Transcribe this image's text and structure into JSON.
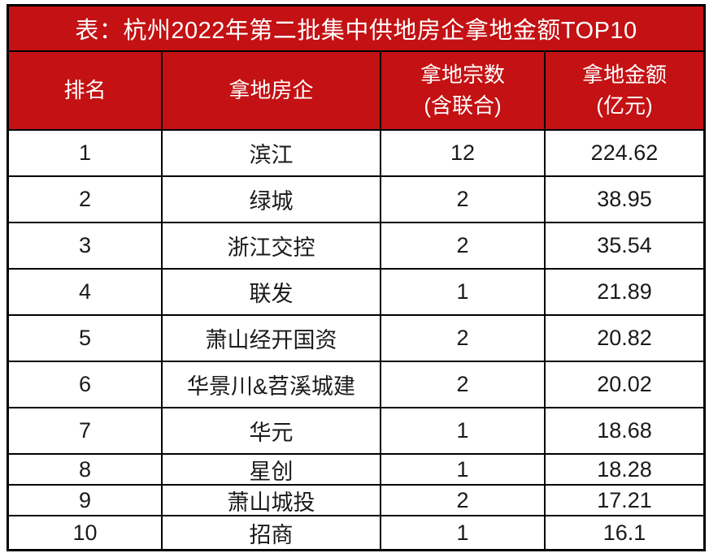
{
  "page": {
    "title": "表：杭州2022年第二批集中供地房企拿地金额TOP10"
  },
  "colors": {
    "accent_red": "#C41113",
    "header_text": "#FFFFFF",
    "border": "#000000",
    "body_text": "#1A1A1A"
  },
  "table": {
    "headers": [
      {
        "line1": "排名",
        "line2": ""
      },
      {
        "line1": "拿地房企",
        "line2": ""
      },
      {
        "line1": "拿地宗数",
        "line2": "(含联合)"
      },
      {
        "line1": "拿地金额",
        "line2": "(亿元)"
      }
    ],
    "rows": [
      {
        "rank": "1",
        "company": "滨江",
        "plots": "12",
        "amount": "224.62"
      },
      {
        "rank": "2",
        "company": "绿城",
        "plots": "2",
        "amount": "38.95"
      },
      {
        "rank": "3",
        "company": "浙江交控",
        "plots": "2",
        "amount": "35.54"
      },
      {
        "rank": "4",
        "company": "联发",
        "plots": "1",
        "amount": "21.89"
      },
      {
        "rank": "5",
        "company": "萧山经开国资",
        "plots": "2",
        "amount": "20.82"
      },
      {
        "rank": "6",
        "company": "华景川&苕溪城建",
        "plots": "2",
        "amount": "20.02"
      },
      {
        "rank": "7",
        "company": "华元",
        "plots": "1",
        "amount": "18.68"
      },
      {
        "rank": "8",
        "company": "星创",
        "plots": "1",
        "amount": "18.28"
      },
      {
        "rank": "9",
        "company": "萧山城投",
        "plots": "2",
        "amount": "17.21"
      },
      {
        "rank": "10",
        "company": "招商",
        "plots": "1",
        "amount": "16.1"
      }
    ]
  },
  "chart_data": {
    "type": "table",
    "title": "表：杭州2022年第二批集中供地房企拿地金额TOP10",
    "columns": [
      "排名",
      "拿地房企",
      "拿地宗数(含联合)",
      "拿地金额(亿元)"
    ],
    "rows": [
      [
        1,
        "滨江",
        12,
        224.62
      ],
      [
        2,
        "绿城",
        2,
        38.95
      ],
      [
        3,
        "浙江交控",
        2,
        35.54
      ],
      [
        4,
        "联发",
        1,
        21.89
      ],
      [
        5,
        "萧山经开国资",
        2,
        20.82
      ],
      [
        6,
        "华景川&苕溪城建",
        2,
        20.02
      ],
      [
        7,
        "华元",
        1,
        18.68
      ],
      [
        8,
        "星创",
        1,
        18.28
      ],
      [
        9,
        "萧山城投",
        2,
        17.21
      ],
      [
        10,
        "招商",
        1,
        16.1
      ]
    ],
    "notes": "Static ranked table, red header theme, black grid borders, amounts in 亿元 (100M CNY)"
  }
}
